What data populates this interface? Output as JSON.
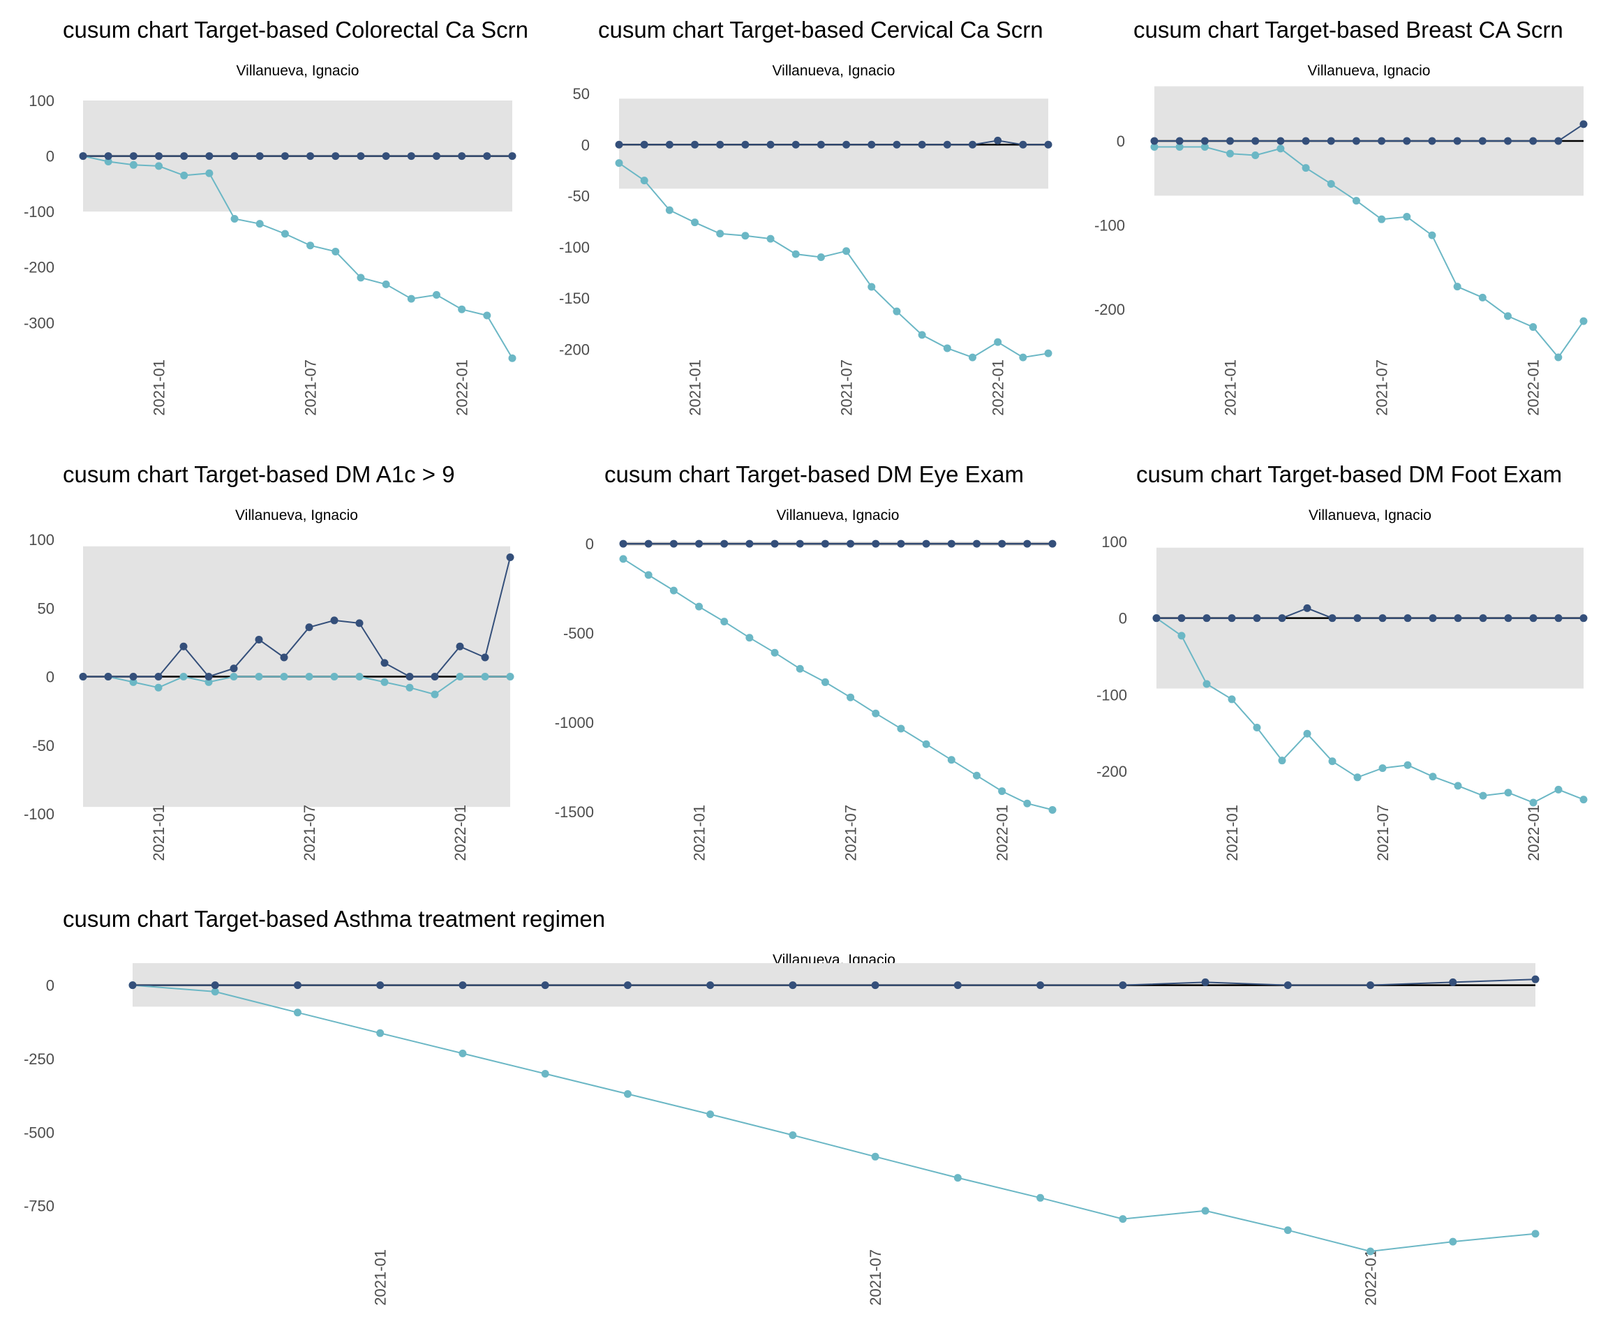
{
  "colors": {
    "upper_series": "#344f7a",
    "lower_series": "#6bb7c5",
    "control_band": "#e3e3e3",
    "center_line": "#000000"
  },
  "chart_data": [
    {
      "type": "line",
      "title": "cusum chart Target-based  Colorectal Ca Scrn",
      "subtitle": "Villanueva, Ignacio",
      "xlabel": "",
      "ylabel": "",
      "x": [
        "2020-10",
        "2020-11",
        "2020-12",
        "2021-01",
        "2021-02",
        "2021-03",
        "2021-04",
        "2021-05",
        "2021-06",
        "2021-07",
        "2021-08",
        "2021-09",
        "2021-10",
        "2021-11",
        "2021-12",
        "2022-01",
        "2022-02",
        "2022-03"
      ],
      "x_ticks": [
        "2021-01",
        "2021-07",
        "2022-01"
      ],
      "y_ticks": [
        100,
        0,
        -100,
        -200,
        -300
      ],
      "ylim": [
        -370,
        100
      ],
      "control_band": [
        -100,
        100
      ],
      "grid": false,
      "series": [
        {
          "name": "upper",
          "values": [
            0,
            0,
            0,
            0,
            0,
            0,
            0,
            0,
            0,
            0,
            0,
            0,
            0,
            0,
            0,
            0,
            0,
            0
          ]
        },
        {
          "name": "lower",
          "values": [
            0,
            -10,
            -16,
            -18,
            -35,
            -31,
            -113,
            -122,
            -140,
            -161,
            -172,
            -219,
            -231,
            -257,
            -250,
            -276,
            -287,
            -364
          ]
        }
      ]
    },
    {
      "type": "line",
      "title": "cusum chart Target-based  Cervical Ca Scrn",
      "subtitle": "Villanueva, Ignacio",
      "xlabel": "",
      "ylabel": "",
      "x": [
        "2020-10",
        "2020-11",
        "2020-12",
        "2021-01",
        "2021-02",
        "2021-03",
        "2021-04",
        "2021-05",
        "2021-06",
        "2021-07",
        "2021-08",
        "2021-09",
        "2021-10",
        "2021-11",
        "2021-12",
        "2022-01",
        "2022-02",
        "2022-03"
      ],
      "x_ticks": [
        "2021-01",
        "2021-07",
        "2022-01"
      ],
      "y_ticks": [
        50,
        0,
        -50,
        -100,
        -150,
        -200
      ],
      "ylim": [
        -212,
        50
      ],
      "control_band": [
        -43,
        45
      ],
      "grid": false,
      "series": [
        {
          "name": "upper",
          "values": [
            0,
            0,
            0,
            0,
            0,
            0,
            0,
            0,
            0,
            0,
            0,
            0,
            0,
            0,
            0,
            4,
            0,
            0
          ]
        },
        {
          "name": "lower",
          "values": [
            -18,
            -35,
            -64,
            -76,
            -87,
            -89,
            -92,
            -107,
            -110,
            -104,
            -139,
            -163,
            -186,
            -199,
            -208,
            -193,
            -208,
            -204
          ]
        }
      ]
    },
    {
      "type": "line",
      "title": "cusum chart Target-based  Breast CA Scrn",
      "subtitle": "Villanueva, Ignacio",
      "xlabel": "",
      "ylabel": "",
      "x": [
        "2020-10",
        "2020-11",
        "2020-12",
        "2021-01",
        "2021-02",
        "2021-03",
        "2021-04",
        "2021-05",
        "2021-06",
        "2021-07",
        "2021-08",
        "2021-09",
        "2021-10",
        "2021-11",
        "2021-12",
        "2022-01",
        "2022-02",
        "2022-03"
      ],
      "x_ticks": [
        "2021-01",
        "2021-07",
        "2022-01"
      ],
      "y_ticks": [
        0,
        -100,
        -200
      ],
      "ylim": [
        -262,
        68
      ],
      "control_band": [
        -65,
        65
      ],
      "grid": false,
      "series": [
        {
          "name": "upper",
          "values": [
            0,
            0,
            0,
            0,
            0,
            0,
            0,
            0,
            0,
            0,
            0,
            0,
            0,
            0,
            0,
            0,
            0,
            20
          ]
        },
        {
          "name": "lower",
          "values": [
            -7,
            -7,
            -7,
            -15,
            -17,
            -9,
            -32,
            -51,
            -71,
            -93,
            -90,
            -112,
            -173,
            -186,
            -208,
            -221,
            -257,
            -214
          ]
        }
      ]
    },
    {
      "type": "line",
      "title": "cusum chart Target-based  DM A1c > 9",
      "subtitle": "Villanueva, Ignacio",
      "xlabel": "",
      "ylabel": "",
      "x": [
        "2020-10",
        "2020-11",
        "2020-12",
        "2021-01",
        "2021-02",
        "2021-03",
        "2021-04",
        "2021-05",
        "2021-06",
        "2021-07",
        "2021-08",
        "2021-09",
        "2021-10",
        "2021-11",
        "2021-12",
        "2022-01",
        "2022-02",
        "2022-03"
      ],
      "x_ticks": [
        "2021-01",
        "2021-07",
        "2022-01"
      ],
      "y_ticks": [
        100,
        50,
        0,
        -50,
        -100
      ],
      "ylim": [
        -100,
        100
      ],
      "control_band": [
        -95,
        95
      ],
      "grid": false,
      "series": [
        {
          "name": "upper",
          "values": [
            0,
            0,
            0,
            0,
            22,
            0,
            6,
            27,
            14,
            36,
            41,
            39,
            10,
            0,
            0,
            22,
            14,
            87
          ]
        },
        {
          "name": "lower",
          "values": [
            0,
            0,
            -4,
            -8,
            0,
            -4,
            0,
            0,
            0,
            0,
            0,
            0,
            -4,
            -8,
            -13,
            0,
            0,
            0
          ]
        }
      ]
    },
    {
      "type": "line",
      "title": "cusum chart Target-based  DM Eye Exam",
      "subtitle": "Villanueva, Ignacio",
      "xlabel": "",
      "ylabel": "",
      "x": [
        "2020-10",
        "2020-11",
        "2020-12",
        "2021-01",
        "2021-02",
        "2021-03",
        "2021-04",
        "2021-05",
        "2021-06",
        "2021-07",
        "2021-08",
        "2021-09",
        "2021-10",
        "2021-11",
        "2021-12",
        "2022-01",
        "2022-02",
        "2022-03"
      ],
      "x_ticks": [
        "2021-01",
        "2021-07",
        "2022-01"
      ],
      "y_ticks": [
        0,
        -500,
        -1000,
        -1500
      ],
      "ylim": [
        -1500,
        12
      ],
      "control_band": [
        -12,
        12
      ],
      "grid": false,
      "series": [
        {
          "name": "upper",
          "values": [
            0,
            0,
            0,
            0,
            0,
            0,
            0,
            0,
            0,
            0,
            0,
            0,
            0,
            0,
            0,
            0,
            0,
            0
          ]
        },
        {
          "name": "lower",
          "values": [
            -85,
            -175,
            -262,
            -352,
            -436,
            -526,
            -610,
            -700,
            -775,
            -860,
            -950,
            -1035,
            -1122,
            -1210,
            -1298,
            -1385,
            -1454,
            -1490
          ]
        }
      ]
    },
    {
      "type": "line",
      "title": "cusum chart Target-based  DM Foot Exam",
      "subtitle": "Villanueva, Ignacio",
      "xlabel": "",
      "ylabel": "",
      "x": [
        "2020-10",
        "2020-11",
        "2020-12",
        "2021-01",
        "2021-02",
        "2021-03",
        "2021-04",
        "2021-05",
        "2021-06",
        "2021-07",
        "2021-08",
        "2021-09",
        "2021-10",
        "2021-11",
        "2021-12",
        "2022-01",
        "2022-02",
        "2022-03"
      ],
      "x_ticks": [
        "2021-01",
        "2021-07",
        "2022-01"
      ],
      "y_ticks": [
        100,
        0,
        -100,
        -200
      ],
      "ylim": [
        -241,
        100
      ],
      "control_band": [
        -92,
        92
      ],
      "grid": false,
      "series": [
        {
          "name": "upper",
          "values": [
            0,
            0,
            0,
            0,
            0,
            0,
            13,
            0,
            0,
            0,
            0,
            0,
            0,
            0,
            0,
            0,
            0,
            0
          ]
        },
        {
          "name": "lower",
          "values": [
            0,
            -23,
            -86,
            -106,
            -143,
            -186,
            -151,
            -187,
            -208,
            -196,
            -192,
            -207,
            -219,
            -232,
            -228,
            -241,
            -224,
            -237
          ]
        }
      ]
    },
    {
      "type": "line",
      "title": "cusum chart Target-based  Asthma treatment regimen",
      "subtitle": "Villanueva, Ignacio",
      "xlabel": "",
      "ylabel": "",
      "x": [
        "2020-10",
        "2020-11",
        "2020-12",
        "2021-01",
        "2021-02",
        "2021-03",
        "2021-04",
        "2021-05",
        "2021-06",
        "2021-07",
        "2021-08",
        "2021-09",
        "2021-10",
        "2021-11",
        "2021-12",
        "2022-01",
        "2022-02",
        "2022-03"
      ],
      "x_ticks": [
        "2021-01",
        "2021-07",
        "2022-01"
      ],
      "y_ticks": [
        0,
        -250,
        -500,
        -750
      ],
      "ylim": [
        -905,
        75
      ],
      "control_band": [
        -73,
        75
      ],
      "grid": false,
      "series": [
        {
          "name": "upper",
          "values": [
            0,
            0,
            0,
            0,
            0,
            0,
            0,
            0,
            0,
            0,
            0,
            0,
            0,
            10,
            0,
            0,
            10,
            20
          ]
        },
        {
          "name": "lower",
          "values": [
            0,
            -22,
            -93,
            -163,
            -232,
            -301,
            -370,
            -439,
            -510,
            -583,
            -655,
            -723,
            -795,
            -767,
            -833,
            -905,
            -872,
            -845
          ]
        }
      ]
    }
  ]
}
